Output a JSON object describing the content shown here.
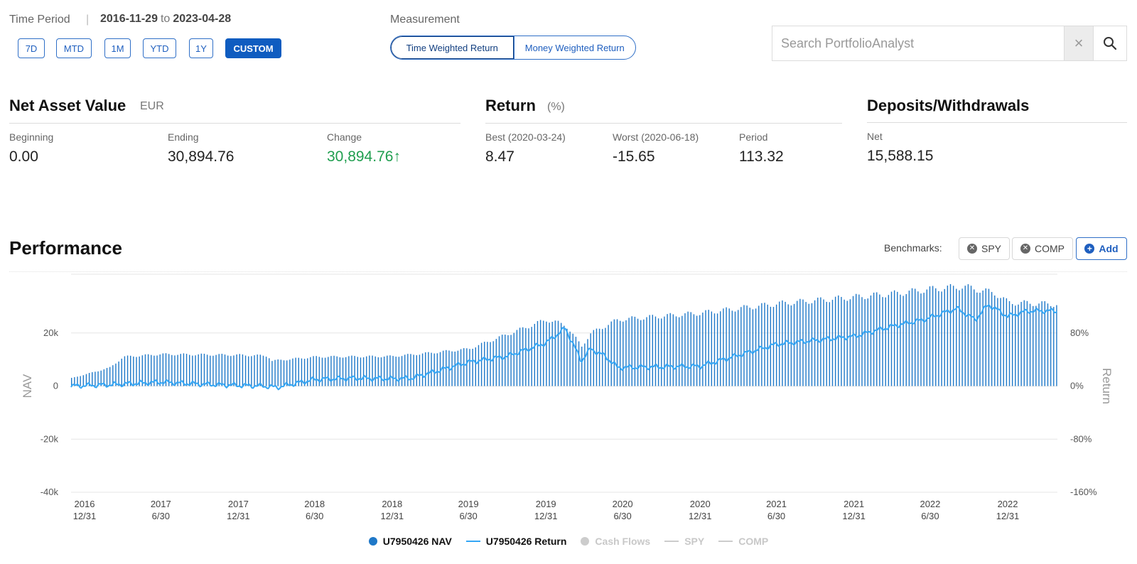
{
  "time_period": {
    "label": "Time Period",
    "separator": "|",
    "start": "2016-11-29",
    "to": "to",
    "end": "2023-04-28",
    "buttons": [
      {
        "label": "7D",
        "active": false
      },
      {
        "label": "MTD",
        "active": false
      },
      {
        "label": "1M",
        "active": false
      },
      {
        "label": "YTD",
        "active": false
      },
      {
        "label": "1Y",
        "active": false
      },
      {
        "label": "CUSTOM",
        "active": true
      }
    ]
  },
  "measurement": {
    "label": "Measurement",
    "options": [
      "Time Weighted Return",
      "Money Weighted Return"
    ],
    "selected": "Time Weighted Return"
  },
  "search": {
    "placeholder": "Search PortfolioAnalyst",
    "clear_glyph": "×"
  },
  "nav": {
    "title": "Net Asset Value",
    "currency": "EUR",
    "beginning_label": "Beginning",
    "beginning": "0.00",
    "ending_label": "Ending",
    "ending": "30,894.76",
    "change_label": "Change",
    "change": "30,894.76",
    "change_arrow": "↑"
  },
  "return": {
    "title": "Return",
    "unit": "(%)",
    "best_label": "Best (2020-03-24)",
    "best": "8.47",
    "worst_label": "Worst (2020-06-18)",
    "worst": "-15.65",
    "period_label": "Period",
    "period": "113.32"
  },
  "deposits": {
    "title": "Deposits/Withdrawals",
    "net_label": "Net",
    "net": "15,588.15"
  },
  "performance": {
    "title": "Performance",
    "benchmarks_label": "Benchmarks:",
    "benchmarks": [
      "SPY",
      "COMP"
    ],
    "add_label": "Add"
  },
  "chart_data": {
    "type": "bar",
    "x_ticks": [
      [
        "2016",
        "12/31"
      ],
      [
        "2017",
        "6/30"
      ],
      [
        "2017",
        "12/31"
      ],
      [
        "2018",
        "6/30"
      ],
      [
        "2018",
        "12/31"
      ],
      [
        "2019",
        "6/30"
      ],
      [
        "2019",
        "12/31"
      ],
      [
        "2020",
        "6/30"
      ],
      [
        "2020",
        "12/31"
      ],
      [
        "2021",
        "6/30"
      ],
      [
        "2021",
        "12/31"
      ],
      [
        "2022",
        "6/30"
      ],
      [
        "2022",
        "12/31"
      ]
    ],
    "x_range": [
      "2016-11-29",
      "2023-04-28"
    ],
    "ylabel_left": "NAV",
    "ylabel_right": "Return",
    "y_left_ticks": [
      "20k",
      "0",
      "-20k",
      "-40k"
    ],
    "y_left_values": [
      20000,
      0,
      -20000,
      -40000
    ],
    "y_left_range": [
      -40000,
      40000
    ],
    "y_right_ticks": [
      "80%",
      "0%",
      "-80%",
      "-160%"
    ],
    "y_right_values": [
      80,
      0,
      -80,
      -160
    ],
    "y_right_range": [
      -160,
      160
    ],
    "series": [
      {
        "name": "U7950426 NAV",
        "axis": "left",
        "color": "#1f78c8",
        "points": [
          [
            "2016-11-29",
            3000
          ],
          [
            "2017-01-15",
            5000
          ],
          [
            "2017-03-01",
            7000
          ],
          [
            "2017-04-01",
            11000
          ],
          [
            "2017-06-30",
            12000
          ],
          [
            "2017-12-31",
            11700
          ],
          [
            "2018-03-10",
            11400
          ],
          [
            "2018-03-20",
            9500
          ],
          [
            "2018-06-30",
            11000
          ],
          [
            "2018-12-31",
            11200
          ],
          [
            "2019-03-31",
            12500
          ],
          [
            "2019-06-30",
            14000
          ],
          [
            "2019-09-30",
            19500
          ],
          [
            "2019-12-31",
            25000
          ],
          [
            "2020-02-15",
            23000
          ],
          [
            "2020-03-24",
            15000
          ],
          [
            "2020-04-15",
            20000
          ],
          [
            "2020-06-18",
            25000
          ],
          [
            "2020-12-31",
            27500
          ],
          [
            "2021-06-30",
            31000
          ],
          [
            "2021-12-31",
            33500
          ],
          [
            "2022-04-15",
            35000
          ],
          [
            "2022-06-30",
            36500
          ],
          [
            "2022-09-15",
            37500
          ],
          [
            "2022-11-30",
            35000
          ],
          [
            "2022-12-31",
            31500
          ],
          [
            "2023-04-28",
            30800
          ]
        ]
      },
      {
        "name": "U7950426 Return",
        "axis": "right",
        "color": "#35a7f5",
        "points": [
          [
            "2016-11-29",
            0
          ],
          [
            "2017-03-01",
            2
          ],
          [
            "2017-06-30",
            6
          ],
          [
            "2017-10-01",
            3
          ],
          [
            "2017-12-31",
            1
          ],
          [
            "2018-03-01",
            0
          ],
          [
            "2018-04-01",
            -2
          ],
          [
            "2018-06-30",
            10
          ],
          [
            "2018-09-30",
            12
          ],
          [
            "2018-12-31",
            11
          ],
          [
            "2019-02-15",
            12
          ],
          [
            "2019-06-30",
            36
          ],
          [
            "2019-09-30",
            45
          ],
          [
            "2019-12-31",
            65
          ],
          [
            "2020-02-15",
            87
          ],
          [
            "2020-03-24",
            38
          ],
          [
            "2020-04-15",
            56
          ],
          [
            "2020-05-20",
            45
          ],
          [
            "2020-06-18",
            28
          ],
          [
            "2020-12-31",
            30
          ],
          [
            "2021-06-30",
            63
          ],
          [
            "2021-12-31",
            75
          ],
          [
            "2022-03-31",
            90
          ],
          [
            "2022-06-15",
            100
          ],
          [
            "2022-09-01",
            117
          ],
          [
            "2022-10-15",
            100
          ],
          [
            "2022-11-15",
            123
          ],
          [
            "2022-12-31",
            105
          ],
          [
            "2023-02-15",
            113
          ],
          [
            "2023-04-28",
            113.32
          ]
        ]
      }
    ],
    "legend": [
      {
        "name": "U7950426 NAV",
        "type": "dot",
        "color": "#1f78c8",
        "active": true
      },
      {
        "name": "U7950426 Return",
        "type": "line",
        "color": "#35a7f5",
        "active": true
      },
      {
        "name": "Cash Flows",
        "type": "dot",
        "color": "#cccccc",
        "active": false
      },
      {
        "name": "SPY",
        "type": "line",
        "color": "#cccccc",
        "active": false
      },
      {
        "name": "COMP",
        "type": "line",
        "color": "#cccccc",
        "active": false
      }
    ],
    "legend_position": "bottom-center",
    "grid": true
  }
}
